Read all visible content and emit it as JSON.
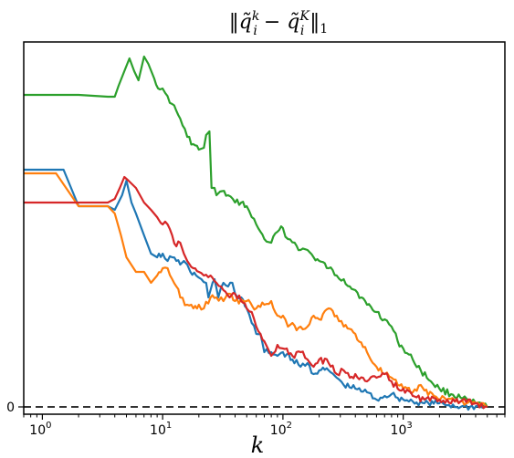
{
  "chart_data": {
    "type": "line",
    "title_parts": {
      "open": "‖",
      "q": "q̃",
      "sub_i": "i",
      "sup_k": "k",
      "minus": " − ",
      "sup_K": "K",
      "close": "‖",
      "sub_1": "1"
    },
    "xlabel": "k",
    "ylabel": "",
    "xscale": "log",
    "xlim": [
      0.7,
      7000
    ],
    "ylim": [
      -0.02,
      1.0
    ],
    "x_ticks": [
      {
        "value": 1,
        "base": "10",
        "exp": "0"
      },
      {
        "value": 10,
        "base": "10",
        "exp": "1"
      },
      {
        "value": 100,
        "base": "10",
        "exp": "2"
      },
      {
        "value": 1000,
        "base": "10",
        "exp": "3"
      }
    ],
    "y_ticks": [
      {
        "value": 0,
        "label": "0"
      }
    ],
    "reference_line": {
      "y": 0,
      "style": "dashed",
      "color": "#333333"
    },
    "grid": false,
    "series": [
      {
        "color": "#2ca02c",
        "points": [
          [
            0.7,
            0.855
          ],
          [
            2.0,
            0.855
          ],
          [
            3.5,
            0.85
          ],
          [
            4.0,
            0.85
          ],
          [
            4.3,
            0.88
          ],
          [
            4.8,
            0.92
          ],
          [
            5.3,
            0.955
          ],
          [
            5.8,
            0.92
          ],
          [
            6.3,
            0.895
          ],
          [
            7.0,
            0.96
          ],
          [
            7.6,
            0.94
          ],
          [
            8.5,
            0.9
          ],
          [
            9.5,
            0.87
          ],
          [
            10.5,
            0.86
          ],
          [
            12,
            0.83
          ],
          [
            14,
            0.79
          ],
          [
            16,
            0.74
          ],
          [
            18,
            0.72
          ],
          [
            20,
            0.705
          ],
          [
            22,
            0.71
          ],
          [
            23,
            0.745
          ],
          [
            24.5,
            0.755
          ],
          [
            25.5,
            0.6
          ],
          [
            27,
            0.6
          ],
          [
            28,
            0.58
          ],
          [
            30,
            0.59
          ],
          [
            35,
            0.58
          ],
          [
            40,
            0.56
          ],
          [
            45,
            0.56
          ],
          [
            50,
            0.55
          ],
          [
            55,
            0.52
          ],
          [
            60,
            0.5
          ],
          [
            65,
            0.48
          ],
          [
            70,
            0.46
          ],
          [
            80,
            0.45
          ],
          [
            90,
            0.48
          ],
          [
            100,
            0.49
          ],
          [
            110,
            0.46
          ],
          [
            125,
            0.45
          ],
          [
            140,
            0.43
          ],
          [
            160,
            0.43
          ],
          [
            180,
            0.41
          ],
          [
            200,
            0.4
          ],
          [
            240,
            0.38
          ],
          [
            280,
            0.36
          ],
          [
            320,
            0.35
          ],
          [
            360,
            0.33
          ],
          [
            400,
            0.32
          ],
          [
            450,
            0.3
          ],
          [
            500,
            0.28
          ],
          [
            600,
            0.26
          ],
          [
            700,
            0.24
          ],
          [
            800,
            0.22
          ],
          [
            900,
            0.18
          ],
          [
            1000,
            0.16
          ],
          [
            1200,
            0.13
          ],
          [
            1400,
            0.1
          ],
          [
            1700,
            0.07
          ],
          [
            2000,
            0.05
          ],
          [
            2500,
            0.035
          ],
          [
            3000,
            0.025
          ],
          [
            3500,
            0.015
          ],
          [
            4000,
            0.01
          ],
          [
            5000,
            0.0
          ]
        ]
      },
      {
        "color": "#1f77b4",
        "points": [
          [
            0.7,
            0.65
          ],
          [
            1.5,
            0.65
          ],
          [
            2.0,
            0.55
          ],
          [
            3.5,
            0.55
          ],
          [
            4.0,
            0.54
          ],
          [
            4.6,
            0.58
          ],
          [
            5.0,
            0.62
          ],
          [
            5.5,
            0.56
          ],
          [
            6.0,
            0.53
          ],
          [
            7.0,
            0.47
          ],
          [
            8.0,
            0.42
          ],
          [
            9.0,
            0.41
          ],
          [
            10,
            0.42
          ],
          [
            11,
            0.4
          ],
          [
            12,
            0.41
          ],
          [
            13,
            0.4
          ],
          [
            14,
            0.39
          ],
          [
            15,
            0.4
          ],
          [
            16,
            0.39
          ],
          [
            17,
            0.37
          ],
          [
            19,
            0.36
          ],
          [
            21,
            0.35
          ],
          [
            23,
            0.34
          ],
          [
            24,
            0.3
          ],
          [
            25,
            0.32
          ],
          [
            27,
            0.35
          ],
          [
            29,
            0.3
          ],
          [
            32,
            0.34
          ],
          [
            35,
            0.33
          ],
          [
            38,
            0.34
          ],
          [
            40,
            0.31
          ],
          [
            45,
            0.3
          ],
          [
            50,
            0.27
          ],
          [
            55,
            0.23
          ],
          [
            60,
            0.2
          ],
          [
            65,
            0.2
          ],
          [
            70,
            0.15
          ],
          [
            80,
            0.15
          ],
          [
            90,
            0.14
          ],
          [
            100,
            0.15
          ],
          [
            120,
            0.13
          ],
          [
            140,
            0.11
          ],
          [
            160,
            0.12
          ],
          [
            180,
            0.09
          ],
          [
            200,
            0.1
          ],
          [
            240,
            0.1
          ],
          [
            280,
            0.08
          ],
          [
            320,
            0.06
          ],
          [
            400,
            0.05
          ],
          [
            500,
            0.04
          ],
          [
            600,
            0.02
          ],
          [
            700,
            0.03
          ],
          [
            800,
            0.035
          ],
          [
            900,
            0.025
          ],
          [
            1000,
            0.02
          ],
          [
            1200,
            0.015
          ],
          [
            1500,
            0.01
          ],
          [
            2000,
            0.01
          ],
          [
            3000,
            0.0
          ],
          [
            5000,
            0.0
          ]
        ]
      },
      {
        "color": "#ff7f0e",
        "points": [
          [
            0.7,
            0.64
          ],
          [
            1.3,
            0.64
          ],
          [
            2.0,
            0.55
          ],
          [
            3.5,
            0.55
          ],
          [
            4.0,
            0.53
          ],
          [
            4.5,
            0.47
          ],
          [
            5.0,
            0.41
          ],
          [
            6.0,
            0.37
          ],
          [
            7.0,
            0.37
          ],
          [
            8.0,
            0.34
          ],
          [
            9.0,
            0.36
          ],
          [
            10,
            0.38
          ],
          [
            11,
            0.38
          ],
          [
            12,
            0.35
          ],
          [
            13,
            0.33
          ],
          [
            14,
            0.3
          ],
          [
            16,
            0.28
          ],
          [
            18,
            0.27
          ],
          [
            20,
            0.28
          ],
          [
            22,
            0.27
          ],
          [
            25,
            0.3
          ],
          [
            28,
            0.3
          ],
          [
            32,
            0.29
          ],
          [
            36,
            0.31
          ],
          [
            40,
            0.29
          ],
          [
            50,
            0.29
          ],
          [
            60,
            0.27
          ],
          [
            70,
            0.28
          ],
          [
            80,
            0.29
          ],
          [
            90,
            0.25
          ],
          [
            100,
            0.25
          ],
          [
            110,
            0.22
          ],
          [
            120,
            0.23
          ],
          [
            130,
            0.21
          ],
          [
            140,
            0.22
          ],
          [
            160,
            0.22
          ],
          [
            180,
            0.25
          ],
          [
            200,
            0.24
          ],
          [
            240,
            0.27
          ],
          [
            280,
            0.25
          ],
          [
            320,
            0.22
          ],
          [
            400,
            0.2
          ],
          [
            500,
            0.15
          ],
          [
            600,
            0.11
          ],
          [
            700,
            0.09
          ],
          [
            800,
            0.08
          ],
          [
            900,
            0.06
          ],
          [
            1000,
            0.05
          ],
          [
            1200,
            0.04
          ],
          [
            1400,
            0.06
          ],
          [
            1500,
            0.045
          ],
          [
            1800,
            0.03
          ],
          [
            2200,
            0.025
          ],
          [
            3000,
            0.015
          ],
          [
            4000,
            0.01
          ],
          [
            5000,
            0.0
          ]
        ]
      },
      {
        "color": "#d62728",
        "points": [
          [
            0.7,
            0.56
          ],
          [
            2.0,
            0.56
          ],
          [
            3.5,
            0.56
          ],
          [
            4.0,
            0.57
          ],
          [
            4.4,
            0.6
          ],
          [
            4.8,
            0.63
          ],
          [
            5.2,
            0.62
          ],
          [
            6.0,
            0.6
          ],
          [
            7.0,
            0.56
          ],
          [
            8.0,
            0.54
          ],
          [
            9.0,
            0.52
          ],
          [
            10,
            0.5
          ],
          [
            11,
            0.5
          ],
          [
            12,
            0.47
          ],
          [
            13,
            0.44
          ],
          [
            14,
            0.45
          ],
          [
            15,
            0.42
          ],
          [
            16,
            0.4
          ],
          [
            18,
            0.38
          ],
          [
            20,
            0.37
          ],
          [
            22,
            0.36
          ],
          [
            25,
            0.36
          ],
          [
            28,
            0.34
          ],
          [
            32,
            0.32
          ],
          [
            36,
            0.3
          ],
          [
            40,
            0.31
          ],
          [
            45,
            0.29
          ],
          [
            50,
            0.27
          ],
          [
            55,
            0.26
          ],
          [
            60,
            0.22
          ],
          [
            65,
            0.2
          ],
          [
            70,
            0.18
          ],
          [
            75,
            0.16
          ],
          [
            80,
            0.14
          ],
          [
            90,
            0.17
          ],
          [
            100,
            0.16
          ],
          [
            120,
            0.14
          ],
          [
            140,
            0.15
          ],
          [
            160,
            0.13
          ],
          [
            180,
            0.11
          ],
          [
            200,
            0.13
          ],
          [
            240,
            0.12
          ],
          [
            280,
            0.09
          ],
          [
            320,
            0.1
          ],
          [
            360,
            0.08
          ],
          [
            400,
            0.09
          ],
          [
            500,
            0.07
          ],
          [
            600,
            0.08
          ],
          [
            700,
            0.09
          ],
          [
            800,
            0.07
          ],
          [
            900,
            0.05
          ],
          [
            1000,
            0.05
          ],
          [
            1200,
            0.03
          ],
          [
            1500,
            0.02
          ],
          [
            2000,
            0.02
          ],
          [
            3000,
            0.015
          ],
          [
            4000,
            0.01
          ],
          [
            5000,
            0.0
          ]
        ]
      }
    ]
  }
}
